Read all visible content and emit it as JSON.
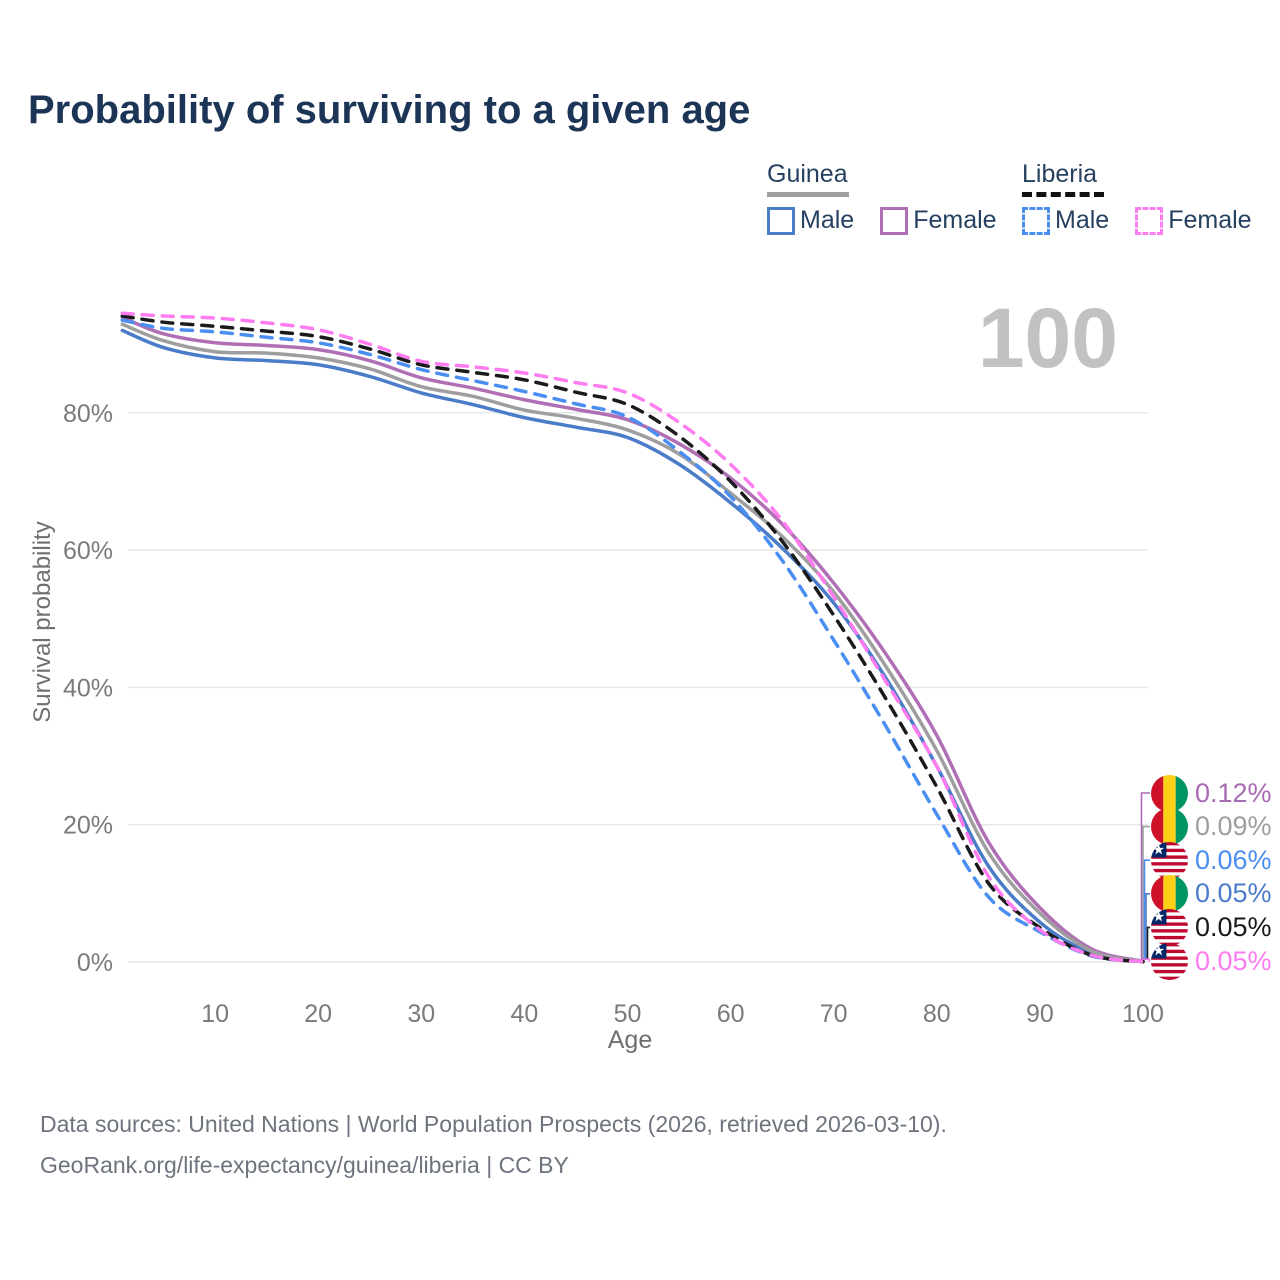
{
  "title": "Probability of surviving to a given age",
  "watermark": "100",
  "legend": {
    "groups": [
      {
        "title": "Guinea",
        "line_style": "solid",
        "underline_color": "#9e9e9e",
        "items": [
          {
            "label": "Male",
            "color": "#4a7cc7"
          },
          {
            "label": "Female",
            "color": "#b06fb5"
          }
        ]
      },
      {
        "title": "Liberia",
        "line_style": "dashed",
        "underline_color": "#111111",
        "items": [
          {
            "label": "Male",
            "color": "#4a8ef2"
          },
          {
            "label": "Female",
            "color": "#ff7bf0"
          }
        ]
      }
    ]
  },
  "chart_data": {
    "type": "line",
    "title": "Probability of surviving to a given age",
    "xlabel": "Age",
    "ylabel": "Survival probability",
    "x_ticks": [
      10,
      20,
      30,
      40,
      50,
      60,
      70,
      80,
      90,
      100
    ],
    "y_ticks": [
      "0%",
      "20%",
      "40%",
      "60%",
      "80%"
    ],
    "y_tick_values": [
      0,
      20,
      40,
      60,
      80
    ],
    "xlim": [
      1,
      100
    ],
    "ylim": [
      0,
      100
    ],
    "grid": "horizontal",
    "legend_position": "top-right",
    "ages": [
      1,
      5,
      10,
      15,
      20,
      25,
      30,
      35,
      40,
      45,
      50,
      55,
      60,
      65,
      70,
      75,
      80,
      85,
      90,
      95,
      100
    ],
    "series": [
      {
        "id": "guinea-male",
        "country": "Guinea",
        "name": "Male",
        "style": "solid",
        "color": "#4a7cc7",
        "values": [
          92.0,
          89.5,
          88.0,
          87.6,
          87.0,
          85.3,
          82.9,
          81.2,
          79.3,
          77.9,
          76.4,
          72.5,
          66.9,
          60.3,
          52.3,
          41.5,
          28.5,
          14.0,
          5.8,
          1.3,
          0.05
        ]
      },
      {
        "id": "guinea-female",
        "country": "Guinea",
        "name": "Female",
        "style": "solid",
        "color": "#b06fb5",
        "values": [
          93.9,
          91.5,
          90.2,
          89.8,
          89.2,
          87.6,
          85.1,
          83.6,
          81.9,
          80.5,
          79.0,
          75.5,
          70.5,
          63.8,
          55.2,
          45.0,
          33.0,
          17.5,
          7.9,
          1.9,
          0.12
        ]
      },
      {
        "id": "guinea-both",
        "country": "Guinea",
        "name": "Both sexes",
        "style": "solid",
        "color": "#9e9e9e",
        "values": [
          92.9,
          90.5,
          88.9,
          88.7,
          88.0,
          86.4,
          83.8,
          82.4,
          80.4,
          79.2,
          77.5,
          74.0,
          68.3,
          62.0,
          53.9,
          43.2,
          30.8,
          16.0,
          7.1,
          1.6,
          0.09
        ]
      },
      {
        "id": "liberia-male",
        "country": "Liberia",
        "name": "Male",
        "style": "dashed",
        "color": "#4a8ef2",
        "values": [
          93.5,
          92.3,
          91.8,
          91.0,
          90.2,
          88.5,
          86.3,
          84.7,
          83.1,
          81.3,
          79.4,
          74.4,
          67.8,
          58.5,
          46.9,
          34.5,
          21.5,
          9.5,
          4.4,
          0.9,
          0.06
        ]
      },
      {
        "id": "liberia-both",
        "country": "Liberia",
        "name": "Both sexes",
        "style": "dashed",
        "color": "#1a1a1a",
        "values": [
          94.1,
          93.2,
          92.6,
          91.9,
          91.1,
          89.3,
          87.0,
          85.9,
          84.8,
          83.0,
          81.2,
          76.6,
          70.0,
          61.3,
          50.5,
          38.5,
          25.5,
          11.5,
          5.0,
          1.0,
          0.05
        ]
      },
      {
        "id": "liberia-female",
        "country": "Liberia",
        "name": "Female",
        "style": "dashed",
        "color": "#ff7bf0",
        "values": [
          94.5,
          94.1,
          93.8,
          93.1,
          92.1,
          90.0,
          87.5,
          86.7,
          85.8,
          84.4,
          82.9,
          78.6,
          72.5,
          64.3,
          53.2,
          41.0,
          28.5,
          12.5,
          4.7,
          1.0,
          0.05
        ]
      }
    ],
    "end_labels": [
      {
        "flag": "guinea",
        "series": "guinea-female",
        "value": "0.12%",
        "color": "#a96bb3"
      },
      {
        "flag": "guinea",
        "series": "guinea-both",
        "value": "0.09%",
        "color": "#9e9e9e"
      },
      {
        "flag": "liberia",
        "series": "liberia-male",
        "value": "0.06%",
        "color": "#4a8ef2"
      },
      {
        "flag": "guinea",
        "series": "guinea-male",
        "value": "0.05%",
        "color": "#4a7cc7"
      },
      {
        "flag": "liberia",
        "series": "liberia-both",
        "value": "0.05%",
        "color": "#1a1a1a"
      },
      {
        "flag": "liberia",
        "series": "liberia-female",
        "value": "0.05%",
        "color": "#ff7bf0"
      }
    ]
  },
  "footer": {
    "line1": "Data sources: United Nations | World Population Prospects (2026, retrieved 2026-03-10).",
    "line2": "GeoRank.org/life-expectancy/guinea/liberia | CC BY"
  }
}
